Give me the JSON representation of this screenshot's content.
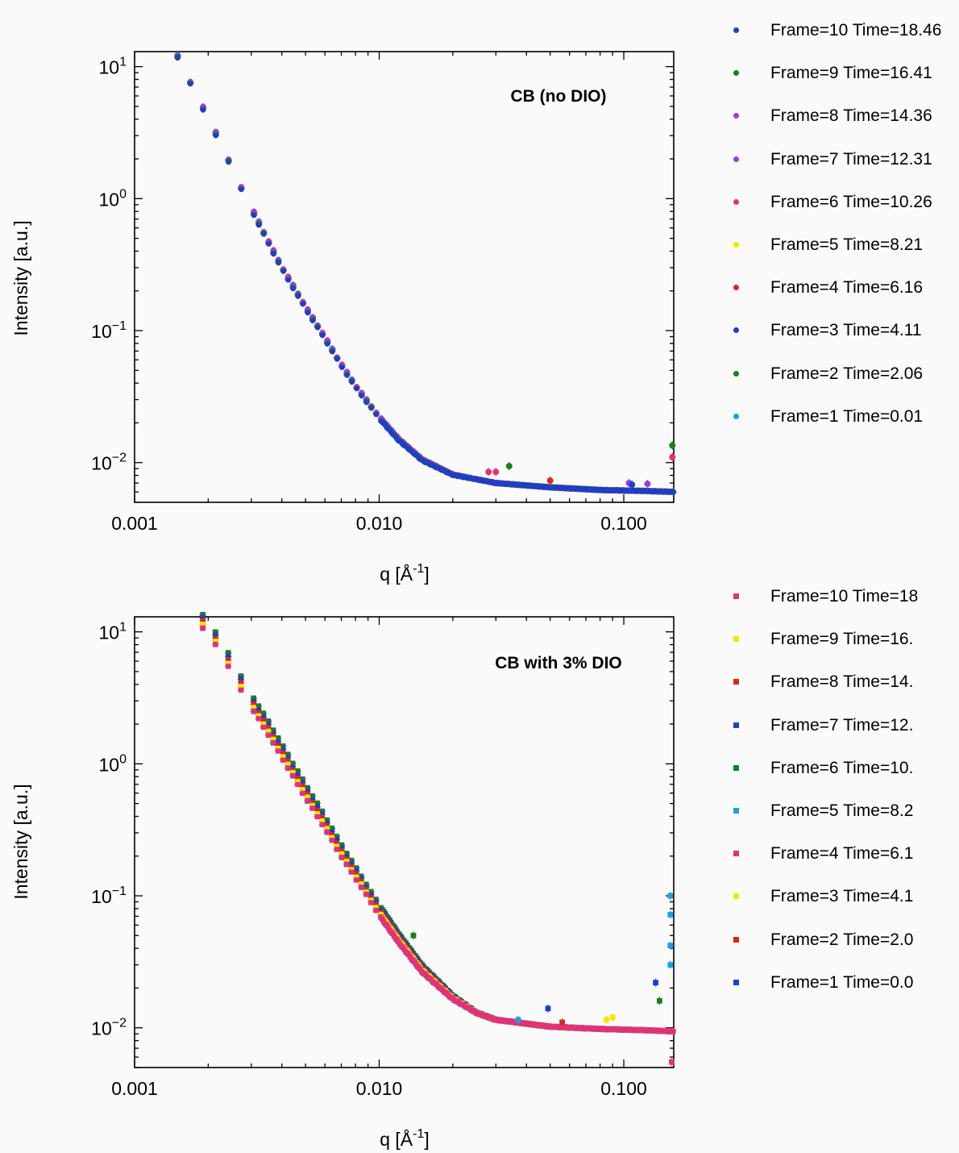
{
  "chart_data": [
    {
      "type": "scatter",
      "annotation": "CB (no DIO)",
      "xlabel_main": "q [Å",
      "xlabel_sup": "-1",
      "xlabel_end": "]",
      "ylabel": "Intensity [a.u.]",
      "xscale": "log",
      "yscale": "log",
      "xlim": [
        0.001,
        0.16
      ],
      "ylim": [
        0.005,
        13
      ],
      "xticklabels": [
        {
          "value": 0.001,
          "label": "0.001"
        },
        {
          "value": 0.01,
          "label": "0.010"
        },
        {
          "value": 0.1,
          "label": "0.100"
        }
      ],
      "yticklabels": [
        {
          "value": 10,
          "base": "10",
          "exp": "1"
        },
        {
          "value": 1,
          "base": "10",
          "exp": "0"
        },
        {
          "value": 0.1,
          "base": "10",
          "exp": "−1"
        },
        {
          "value": 0.01,
          "base": "10",
          "exp": "−2"
        }
      ],
      "marker": "circle",
      "legend_position": "outside-right",
      "series": [
        {
          "name": "Frame=10 Time=18.46",
          "color": "#1f3fc4"
        },
        {
          "name": "Frame=9 Time=16.41",
          "color": "#1e7d1e"
        },
        {
          "name": "Frame=8 Time=14.36",
          "color": "#9a3ee0"
        },
        {
          "name": "Frame=7 Time=12.31",
          "color": "#9a3ee0"
        },
        {
          "name": "Frame=6 Time=10.26",
          "color": "#e0337a"
        },
        {
          "name": "Frame=5 Time=8.21",
          "color": "#f5e600"
        },
        {
          "name": "Frame=4 Time=6.16",
          "color": "#d42a1e"
        },
        {
          "name": "Frame=3 Time=4.11",
          "color": "#1f3fc4"
        },
        {
          "name": "Frame=2 Time=2.06",
          "color": "#1e7d1e"
        },
        {
          "name": "Frame=1 Time=0.01",
          "color": "#1ea0e0"
        }
      ],
      "curve": {
        "q": [
          0.0015,
          0.0017,
          0.0019,
          0.0021,
          0.0023,
          0.0025,
          0.0027,
          0.003,
          0.0035,
          0.004,
          0.005,
          0.006,
          0.007,
          0.008,
          0.01,
          0.012,
          0.015,
          0.02,
          0.03,
          0.05,
          0.08,
          0.12,
          0.16
        ],
        "intensity": [
          12,
          7.4,
          4.9,
          3.4,
          2.4,
          1.7,
          1.25,
          0.85,
          0.48,
          0.3,
          0.15,
          0.088,
          0.055,
          0.038,
          0.022,
          0.015,
          0.0105,
          0.0081,
          0.007,
          0.0065,
          0.0062,
          0.0061,
          0.006
        ]
      },
      "outliers": [
        {
          "q": 0.028,
          "intensity": 0.0085,
          "series": 4
        },
        {
          "q": 0.03,
          "intensity": 0.0085,
          "series": 4
        },
        {
          "q": 0.034,
          "intensity": 0.0094,
          "series": 1
        },
        {
          "q": 0.05,
          "intensity": 0.0073,
          "series": 6
        },
        {
          "q": 0.105,
          "intensity": 0.007,
          "series": 2
        },
        {
          "q": 0.108,
          "intensity": 0.0068,
          "series": 0
        },
        {
          "q": 0.125,
          "intensity": 0.0069,
          "series": 2
        },
        {
          "q": 0.158,
          "intensity": 0.011,
          "series": 4
        },
        {
          "q": 0.158,
          "intensity": 0.0135,
          "series": 1
        }
      ]
    },
    {
      "type": "scatter",
      "annotation": "CB with 3% DIO",
      "xlabel_main": "q [Å",
      "xlabel_sup": "-1",
      "xlabel_end": "]",
      "ylabel": "Intensity [a.u.]",
      "xscale": "log",
      "yscale": "log",
      "xlim": [
        0.001,
        0.16
      ],
      "ylim": [
        0.005,
        13
      ],
      "xticklabels": [
        {
          "value": 0.001,
          "label": "0.001"
        },
        {
          "value": 0.01,
          "label": "0.010"
        },
        {
          "value": 0.1,
          "label": "0.100"
        }
      ],
      "yticklabels": [
        {
          "value": 10,
          "base": "10",
          "exp": "1"
        },
        {
          "value": 1,
          "base": "10",
          "exp": "0"
        },
        {
          "value": 0.1,
          "base": "10",
          "exp": "−1"
        },
        {
          "value": 0.01,
          "base": "10",
          "exp": "−2"
        }
      ],
      "marker": "square",
      "legend_position": "outside-right",
      "series": [
        {
          "name": "Frame=10 Time=18",
          "color": "#e0337a"
        },
        {
          "name": "Frame=9 Time=16.",
          "color": "#f5e600"
        },
        {
          "name": "Frame=8 Time=14.",
          "color": "#d42a1e"
        },
        {
          "name": "Frame=7 Time=12.",
          "color": "#1f3fc4"
        },
        {
          "name": "Frame=6 Time=10.",
          "color": "#1e7d1e"
        },
        {
          "name": "Frame=5 Time=8.2",
          "color": "#1ea0e0"
        },
        {
          "name": "Frame=4 Time=6.1",
          "color": "#e0337a"
        },
        {
          "name": "Frame=3 Time=4.1",
          "color": "#f5e600"
        },
        {
          "name": "Frame=2 Time=2.0",
          "color": "#d42a1e"
        },
        {
          "name": "Frame=1 Time=0.0",
          "color": "#1f3fc4"
        }
      ],
      "curve": {
        "q": [
          0.0019,
          0.0021,
          0.0023,
          0.0025,
          0.0027,
          0.003,
          0.0035,
          0.004,
          0.005,
          0.006,
          0.007,
          0.008,
          0.01,
          0.012,
          0.015,
          0.02,
          0.025,
          0.03,
          0.05,
          0.08,
          0.12,
          0.16
        ],
        "intensity": [
          12,
          9.5,
          7.2,
          5.5,
          4.2,
          3.0,
          1.9,
          1.25,
          0.62,
          0.36,
          0.22,
          0.15,
          0.078,
          0.048,
          0.028,
          0.017,
          0.013,
          0.0115,
          0.0102,
          0.0098,
          0.0096,
          0.0094
        ]
      },
      "outliers": [
        {
          "q": 0.0138,
          "intensity": 0.05,
          "series": 4
        },
        {
          "q": 0.049,
          "intensity": 0.014,
          "series": 9
        },
        {
          "q": 0.037,
          "intensity": 0.0115,
          "series": 5
        },
        {
          "q": 0.056,
          "intensity": 0.011,
          "series": 2
        },
        {
          "q": 0.085,
          "intensity": 0.0115,
          "series": 1
        },
        {
          "q": 0.09,
          "intensity": 0.012,
          "series": 1
        },
        {
          "q": 0.135,
          "intensity": 0.022,
          "series": 9
        },
        {
          "q": 0.14,
          "intensity": 0.016,
          "series": 4
        },
        {
          "q": 0.155,
          "intensity": 0.1,
          "series": 5
        },
        {
          "q": 0.155,
          "intensity": 0.072,
          "series": 5
        },
        {
          "q": 0.155,
          "intensity": 0.042,
          "series": 5
        },
        {
          "q": 0.155,
          "intensity": 0.03,
          "series": 5
        },
        {
          "q": 0.157,
          "intensity": 0.0055,
          "series": 0
        }
      ]
    }
  ]
}
